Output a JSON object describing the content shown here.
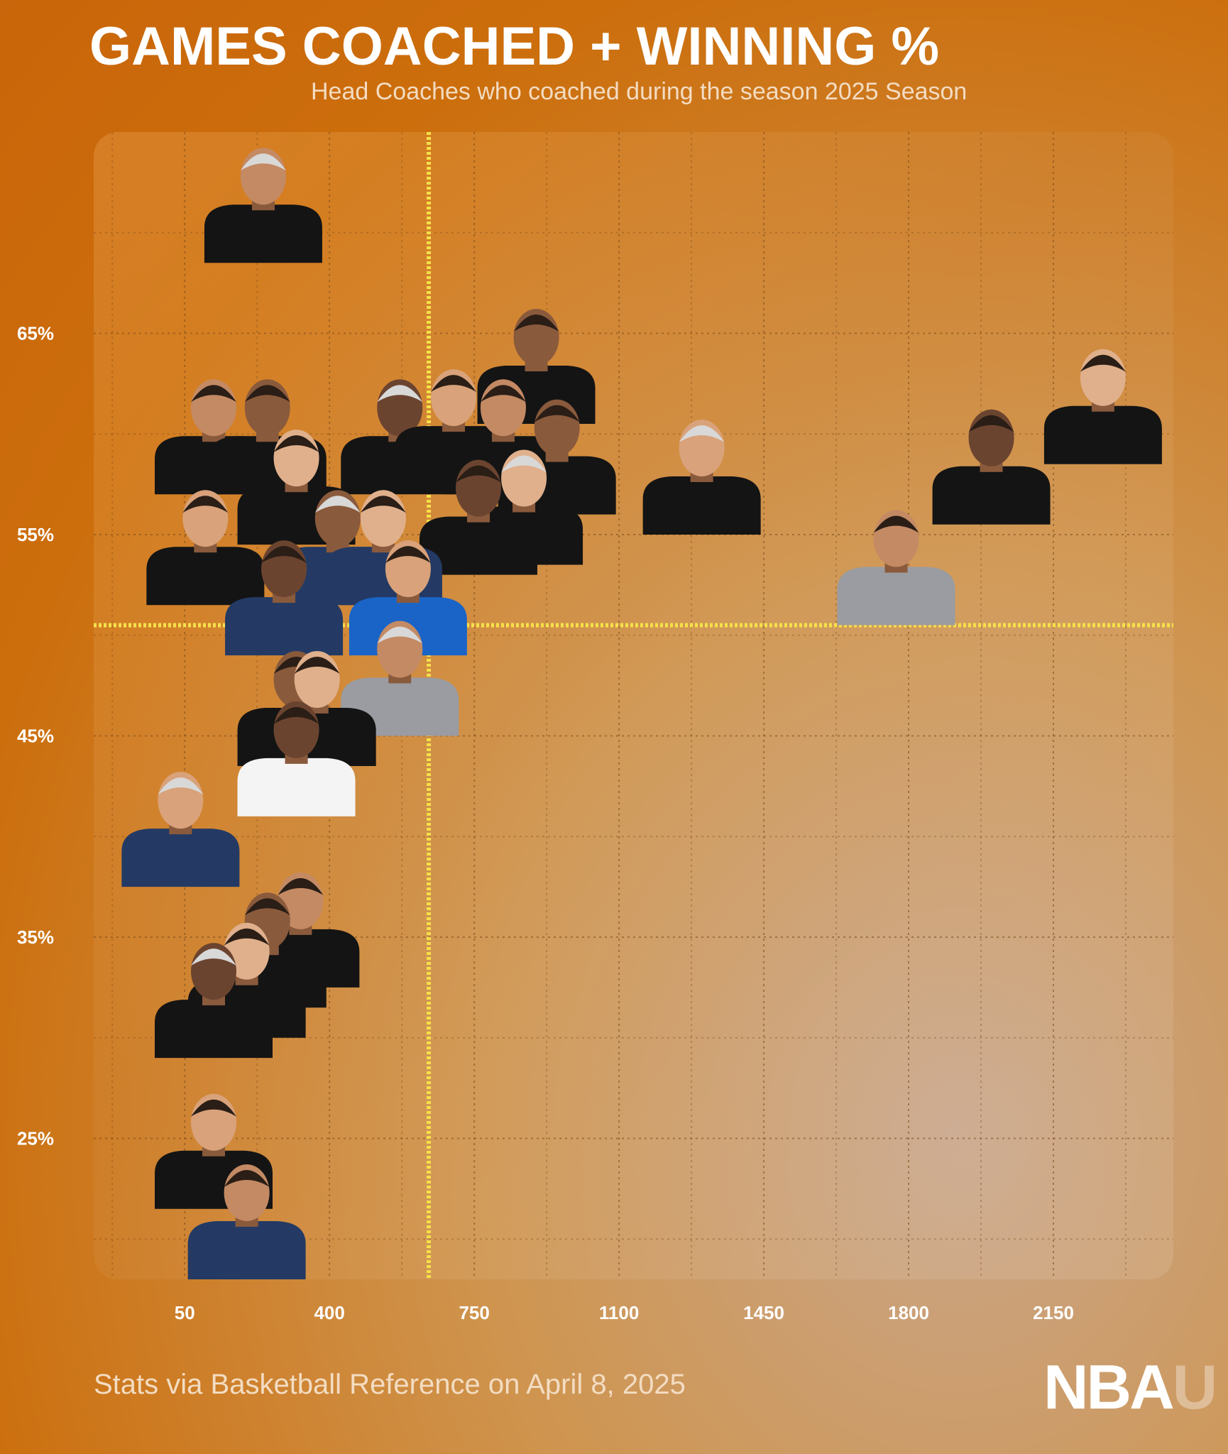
{
  "header": {
    "title": "GAMES COACHED + WINNING %",
    "subtitle": "Head Coaches who coached during the season 2025 Season"
  },
  "footer": {
    "source": "Stats via Basketball Reference on April 8, 2025",
    "logo_main": "NBA",
    "logo_accent": "U"
  },
  "colors": {
    "background": "#cc6e0c",
    "panel": "#d98a35",
    "reference_line": "#f5e04a",
    "grid": "#7a4a1a",
    "jersey_dark": "#141414",
    "jersey_navy": "#243a64",
    "jersey_blue": "#1a64c8",
    "jersey_gray": "#9a9ca2",
    "jersey_white": "#f4f4f4"
  },
  "chart_data": {
    "type": "scatter",
    "title": "GAMES COACHED + WINNING %",
    "subtitle": "Head Coaches who coached during the season 2025 Season",
    "xlabel": "",
    "ylabel": "",
    "x_ticks": [
      50,
      400,
      750,
      1100,
      1450,
      1800,
      2150
    ],
    "y_ticks": [
      25,
      35,
      45,
      55,
      65
    ],
    "y_tick_suffix": "%",
    "xlim": [
      -170,
      2440
    ],
    "ylim": [
      18,
      75
    ],
    "grid": true,
    "reference_lines": {
      "x": 640,
      "y": 50.5
    },
    "marker": "coach-headshot",
    "points": [
      {
        "x": 240,
        "y": 71.5,
        "jersey": "dark"
      },
      {
        "x": 900,
        "y": 63.5,
        "jersey": "dark"
      },
      {
        "x": 2270,
        "y": 61.5,
        "jersey": "dark"
      },
      {
        "x": 2000,
        "y": 58.5,
        "jersey": "dark"
      },
      {
        "x": 1300,
        "y": 58.0,
        "jersey": "dark"
      },
      {
        "x": 120,
        "y": 60.0,
        "jersey": "dark"
      },
      {
        "x": 250,
        "y": 60.0,
        "jersey": "dark"
      },
      {
        "x": 320,
        "y": 57.5,
        "jersey": "dark"
      },
      {
        "x": 570,
        "y": 60.0,
        "jersey": "dark"
      },
      {
        "x": 700,
        "y": 60.5,
        "jersey": "dark"
      },
      {
        "x": 820,
        "y": 60.0,
        "jersey": "dark"
      },
      {
        "x": 950,
        "y": 59.0,
        "jersey": "dark"
      },
      {
        "x": 870,
        "y": 56.5,
        "jersey": "dark"
      },
      {
        "x": 760,
        "y": 56.0,
        "jersey": "dark"
      },
      {
        "x": 100,
        "y": 54.5,
        "jersey": "dark"
      },
      {
        "x": 1770,
        "y": 53.5,
        "jersey": "gray"
      },
      {
        "x": 420,
        "y": 54.5,
        "jersey": "navy"
      },
      {
        "x": 530,
        "y": 54.5,
        "jersey": "navy"
      },
      {
        "x": 290,
        "y": 52.0,
        "jersey": "navy"
      },
      {
        "x": 590,
        "y": 52.0,
        "jersey": "blue"
      },
      {
        "x": 570,
        "y": 48.0,
        "jersey": "gray"
      },
      {
        "x": 320,
        "y": 46.5,
        "jersey": "dark"
      },
      {
        "x": 370,
        "y": 46.5,
        "jersey": "dark"
      },
      {
        "x": 320,
        "y": 44.0,
        "jersey": "white"
      },
      {
        "x": 40,
        "y": 40.5,
        "jersey": "navy"
      },
      {
        "x": 330,
        "y": 35.5,
        "jersey": "dark"
      },
      {
        "x": 250,
        "y": 34.5,
        "jersey": "dark"
      },
      {
        "x": 200,
        "y": 33.0,
        "jersey": "dark"
      },
      {
        "x": 120,
        "y": 32.0,
        "jersey": "dark"
      },
      {
        "x": 120,
        "y": 24.5,
        "jersey": "dark"
      },
      {
        "x": 200,
        "y": 21.0,
        "jersey": "navy"
      }
    ]
  }
}
